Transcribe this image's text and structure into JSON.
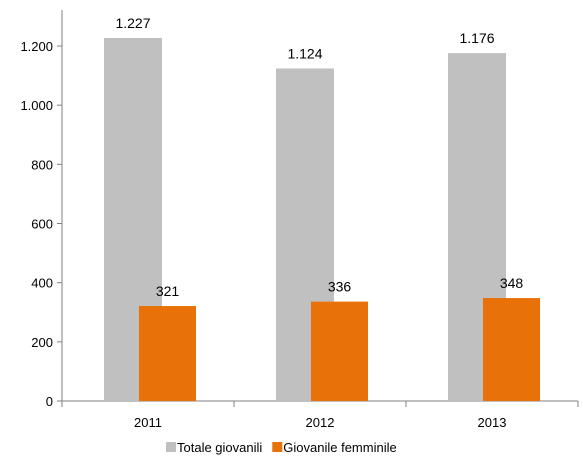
{
  "chart_data": {
    "type": "bar",
    "categories": [
      "2011",
      "2012",
      "2013"
    ],
    "series": [
      {
        "name": "Totale giovanili",
        "values": [
          1227,
          1124,
          1176
        ],
        "labels": [
          "1.227",
          "1.124",
          "1.176"
        ],
        "color": "#c0c0c0"
      },
      {
        "name": "Giovanile femminile",
        "values": [
          321,
          336,
          348
        ],
        "labels": [
          "321",
          "336",
          "348"
        ],
        "color": "#e8710a"
      }
    ],
    "y_ticks": [
      0,
      200,
      400,
      600,
      800,
      1000,
      1200
    ],
    "y_tick_labels": [
      "0",
      "200",
      "400",
      "600",
      "800",
      "1.000",
      "1.200"
    ],
    "ylim": [
      0,
      1200
    ],
    "grid": false,
    "legend_placement": "bottom",
    "axis_color": "#808080"
  }
}
